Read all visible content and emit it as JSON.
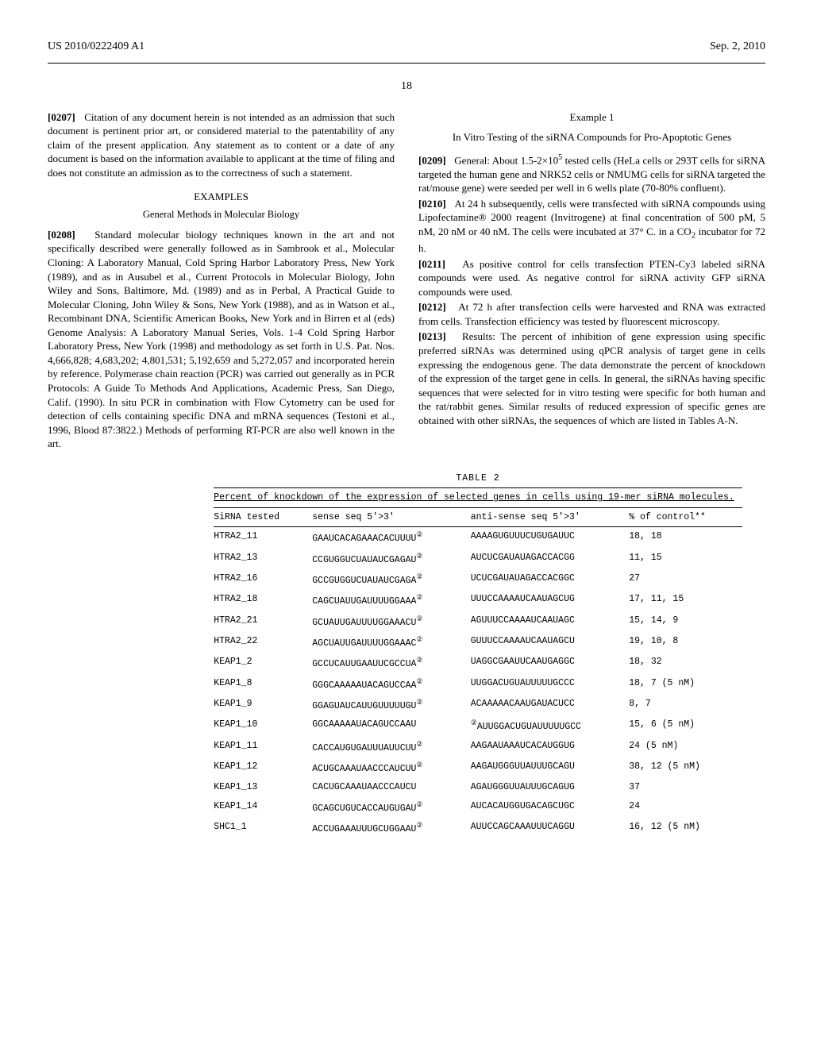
{
  "header": {
    "pub_number": "US 2010/0222409 A1",
    "date": "Sep. 2, 2010",
    "page": "18"
  },
  "left_col": {
    "p0207_num": "[0207]",
    "p0207": "Citation of any document herein is not intended as an admission that such document is pertinent prior art, or considered material to the patentability of any claim of the present application. Any statement as to content or a date of any document is based on the information available to applicant at the time of filing and does not constitute an admission as to the correctness of such a statement.",
    "examples_heading": "EXAMPLES",
    "gm_heading": "General Methods in Molecular Biology",
    "p0208_num": "[0208]",
    "p0208": "Standard molecular biology techniques known in the art and not specifically described were generally followed as in Sambrook et al., Molecular Cloning: A Laboratory Manual, Cold Spring Harbor Laboratory Press, New York (1989), and as in Ausubel et al., Current Protocols in Molecular Biology, John Wiley and Sons, Baltimore, Md. (1989) and as in Perbal, A Practical Guide to Molecular Cloning, John Wiley & Sons, New York (1988), and as in Watson et al., Recombinant DNA, Scientific American Books, New York and in Birren et al (eds) Genome Analysis: A Laboratory Manual Series, Vols. 1-4 Cold Spring Harbor Laboratory Press, New York (1998) and methodology as set forth in U.S. Pat. Nos. 4,666,828; 4,683,202; 4,801,531; 5,192,659 and 5,272,057 and incorporated herein by reference. Polymerase chain reaction (PCR) was carried out generally as in PCR Protocols: A Guide To Methods And Applications, Academic Press, San Diego, Calif. (1990). In situ PCR in combination with Flow Cytometry can be used for detection of cells containing specific DNA and mRNA sequences (Testoni et al., 1996, Blood 87:3822.) Methods of performing RT-PCR are also well known in the art."
  },
  "right_col": {
    "ex1_title": "Example 1",
    "ex1_subtitle": "In Vitro Testing of the siRNA Compounds for Pro-Apoptotic Genes",
    "p0209_num": "[0209]",
    "p0209_a": "General: About 1.5-2×10",
    "p0209_exp": "5",
    "p0209_b": " tested cells (HeLa cells or 293T cells for siRNA targeted the human gene and NRK52 cells or NMUMG cells for siRNA targeted the rat/mouse gene) were seeded per well in 6 wells plate (70-80% confluent).",
    "p0210_num": "[0210]",
    "p0210_a": "At 24 h subsequently, cells were transfected with siRNA compounds using Lipofectamine® 2000 reagent (Invitrogene) at final concentration of 500 pM, 5 nM, 20 nM or 40 nM. The cells were incubated at 37° C. in a CO",
    "p0210_sub": "2",
    "p0210_b": " incubator for 72 h.",
    "p0211_num": "[0211]",
    "p0211": "As positive control for cells transfection PTEN-Cy3 labeled siRNA compounds were used. As negative control for siRNA activity GFP siRNA compounds were used.",
    "p0212_num": "[0212]",
    "p0212": "At 72 h after transfection cells were harvested and RNA was extracted from cells. Transfection efficiency was tested by fluorescent microscopy.",
    "p0213_num": "[0213]",
    "p0213": "Results: The percent of inhibition of gene expression using specific preferred siRNAs was determined using qPCR analysis of target gene in cells expressing the endogenous gene. The data demonstrate the percent of knockdown of the expression of the target gene in cells. In general, the siRNAs having specific sequences that were selected for in vitro testing were specific for both human and the rat/rabbit genes. Similar results of reduced expression of specific genes are obtained with other siRNAs, the sequences of which are listed in Tables A-N."
  },
  "table": {
    "label": "TABLE 2",
    "caption": "Percent of knockdown of the expression of selected genes in cells using 19-mer siRNA molecules.",
    "headers": {
      "c1": "SiRNA tested",
      "c2": "sense seq 5'>3'",
      "c3": "anti-sense seq 5'>3'",
      "c4": "% of control**"
    },
    "rows": [
      {
        "name": "HTRA2_11",
        "sense": "GAAUCACAGAAACACUUUU",
        "mark_s": "②",
        "anti": "AAAAGUGUUUCUGUGAUUC",
        "mark_a": "",
        "pct": "18, 18"
      },
      {
        "name": "HTRA2_13",
        "sense": "CCGUGGUCUAUAUCGAGAU",
        "mark_s": "②",
        "anti": "AUCUCGAUAUAGACCACGG",
        "mark_a": "",
        "pct": "11, 15"
      },
      {
        "name": "HTRA2_16",
        "sense": "GCCGUGGUCUAUAUCGAGA",
        "mark_s": "②",
        "anti": "UCUCGAUAUAGACCACGGC",
        "mark_a": "",
        "pct": "27"
      },
      {
        "name": "HTRA2_18",
        "sense": "CAGCUAUUGAUUUUGGAAA",
        "mark_s": "②",
        "anti": "UUUCCAAAAUCAAUAGCUG",
        "mark_a": "",
        "pct": "17, 11, 15"
      },
      {
        "name": "HTRA2_21",
        "sense": "GCUAUUGAUUUUGGAAACU",
        "mark_s": "②",
        "anti": "AGUUUCCAAAAUCAAUAGC",
        "mark_a": "",
        "pct": "15, 14, 9"
      },
      {
        "name": "HTRA2_22",
        "sense": "AGCUAUUGAUUUUGGAAAC",
        "mark_s": "②",
        "anti": "GUUUCCAAAAUCAAUAGCU",
        "mark_a": "",
        "pct": "19, 10, 8"
      },
      {
        "name": "KEAP1_2",
        "sense": "GCCUCAUUGAAUUCGCCUA",
        "mark_s": "②",
        "anti": "UAGGCGAAUUCAAUGAGGC",
        "mark_a": "",
        "pct": "18, 32"
      },
      {
        "name": "KEAP1_8",
        "sense": "GGGCAAAAAUACAGUCCAA",
        "mark_s": "②",
        "anti": "UUGGACUGUAUUUUUGCCC",
        "mark_a": "",
        "pct": "18, 7 (5 nM)"
      },
      {
        "name": "KEAP1_9",
        "sense": "GGAGUAUCAUUGUUUUUGU",
        "mark_s": "②",
        "anti": "ACAAAAACAAUGAUACUCC",
        "mark_a": "",
        "pct": "8, 7"
      },
      {
        "name": "KEAP1_10",
        "sense": "GGCAAAAAUACAGUCCAAU",
        "mark_s": "",
        "anti": "AUUGGACUGUAUUUUUGCC",
        "mark_a": "②",
        "pct": "15, 6 (5 nM)"
      },
      {
        "name": "KEAP1_11",
        "sense": "CACCAUGUGAUUUAUUCUU",
        "mark_s": "②",
        "anti": "AAGAAUAAAUCACAUGGUG",
        "mark_a": "",
        "pct": "24 (5 nM)"
      },
      {
        "name": "KEAP1_12",
        "sense": "ACUGCAAAUAACCCAUCUU",
        "mark_s": "②",
        "anti": "AAGAUGGGUUAUUUGCAGU",
        "mark_a": "",
        "pct": "38, 12 (5 nM)"
      },
      {
        "name": "KEAP1_13",
        "sense": "CACUGCAAAUAACCCAUCU",
        "mark_s": "",
        "anti": "AGAUGGGUUAUUUGCAGUG",
        "mark_a": "",
        "pct": "37"
      },
      {
        "name": "KEAP1_14",
        "sense": "GCAGCUGUCACCAUGUGAU",
        "mark_s": "②",
        "anti": "AUCACAUGGUGACAGCUGC",
        "mark_a": "",
        "pct": "24"
      },
      {
        "name": "SHC1_1",
        "sense": "ACCUGAAAUUUGCUGGAAU",
        "mark_s": "②",
        "anti": "AUUCCAGCAAAUUUCAGGU",
        "mark_a": "",
        "pct": "16, 12 (5 nM)"
      }
    ]
  }
}
